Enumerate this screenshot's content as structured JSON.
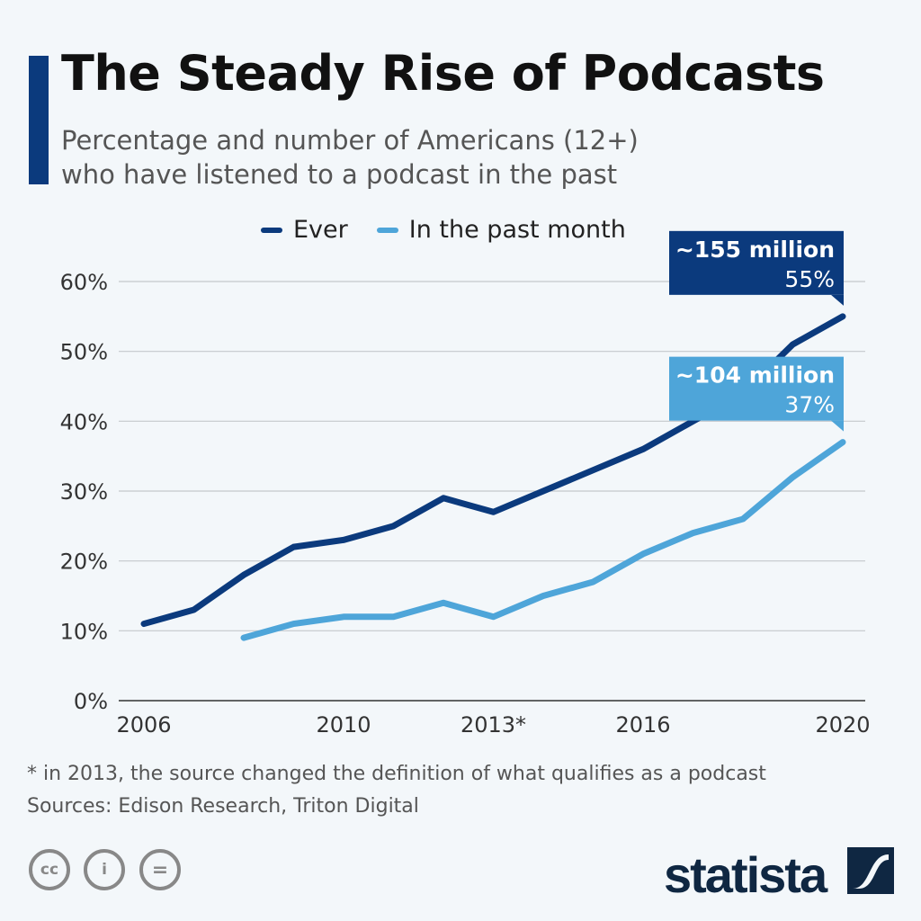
{
  "header": {
    "title": "The Steady Rise of Podcasts",
    "subtitle_line1": "Percentage and number of Americans (12+)",
    "subtitle_line2": "who have listened to a podcast in the past"
  },
  "chart_data": {
    "type": "line",
    "x": [
      2006,
      2007,
      2008,
      2009,
      2010,
      2011,
      2012,
      2013,
      2014,
      2015,
      2016,
      2017,
      2018,
      2019,
      2020
    ],
    "x_tick_labels": [
      {
        "year": 2006,
        "label": "2006"
      },
      {
        "year": 2010,
        "label": "2010"
      },
      {
        "year": 2013,
        "label": "2013*"
      },
      {
        "year": 2016,
        "label": "2016"
      },
      {
        "year": 2020,
        "label": "2020"
      }
    ],
    "y_ticks": [
      0,
      10,
      20,
      30,
      40,
      50,
      60
    ],
    "y_tick_format": "%",
    "ylim": [
      0,
      60
    ],
    "grid": true,
    "legend_position": "top",
    "series": [
      {
        "name": "Ever",
        "color": "#0b3a7d",
        "values": [
          11,
          13,
          18,
          22,
          23,
          25,
          29,
          27,
          30,
          33,
          36,
          40,
          44,
          51,
          55
        ],
        "annotation": {
          "label": "~155 million",
          "value": "55%"
        }
      },
      {
        "name": "In the past month",
        "color": "#4ea5d9",
        "values": [
          null,
          null,
          9,
          11,
          12,
          12,
          14,
          12,
          15,
          17,
          21,
          24,
          26,
          32,
          37
        ],
        "annotation": {
          "label": "~104 million",
          "value": "37%"
        }
      }
    ]
  },
  "footer": {
    "note": "* in 2013, the source changed the definition of what qualifies as a podcast",
    "sources": "Sources: Edison Research, Triton Digital",
    "logo": "statista",
    "license_icons": [
      "cc-icon",
      "attribution-icon",
      "no-derivatives-icon"
    ]
  }
}
